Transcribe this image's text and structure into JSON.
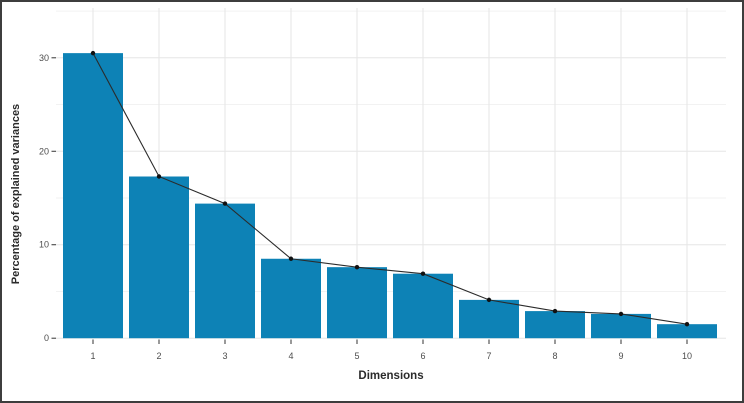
{
  "chart_data": {
    "type": "bar",
    "subtype": "scree-plot: bars with connected line-and-point overlay of the same values",
    "title": "",
    "xlabel": "Dimensions",
    "ylabel": "Percentage of explained variances",
    "categories": [
      "1",
      "2",
      "3",
      "4",
      "5",
      "6",
      "7",
      "8",
      "9",
      "10"
    ],
    "values": [
      30.5,
      17.3,
      14.4,
      8.5,
      7.6,
      6.9,
      4.1,
      2.9,
      2.6,
      1.5
    ],
    "ylim": [
      0,
      35
    ],
    "y_ticks": [
      0,
      10,
      20,
      30
    ],
    "y_tick_labels": [
      "0",
      "10",
      "20",
      "30"
    ],
    "y_minor_gridlines": [
      5,
      15,
      25,
      35
    ],
    "grid": "horizontal major+minor gridlines, vertical gridlines at category centers, white panel background",
    "legend": "none",
    "colors": {
      "bar": "#0D82B6",
      "line": "#2b2b2b",
      "point": "#111111",
      "grid_major": "#e6e6e6",
      "grid_minor": "#f2f2f2",
      "tick": "#333333",
      "tick_label": "#4d4d4d",
      "axis_title": "#2b2b2b",
      "frame": "#3d3d3d",
      "background": "#ffffff"
    }
  }
}
